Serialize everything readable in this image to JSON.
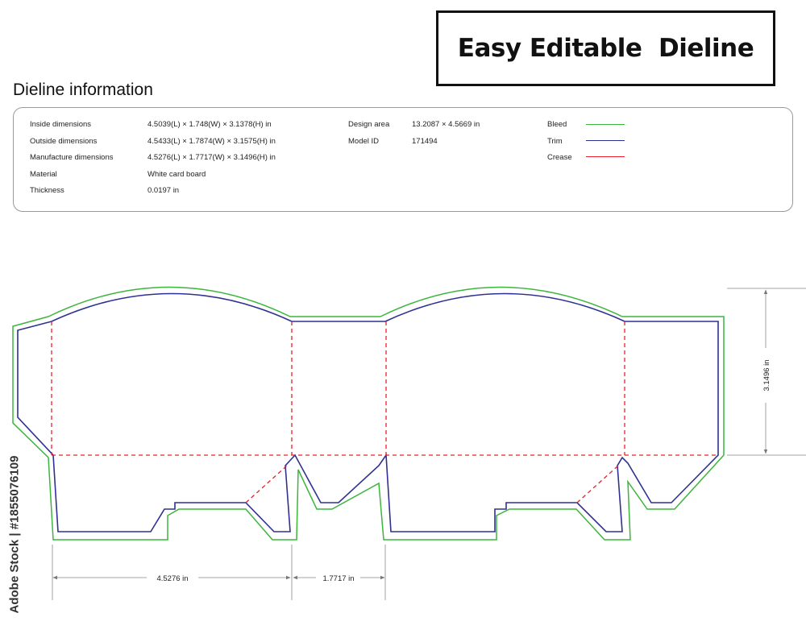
{
  "title": "Easy Editable  Dieline",
  "section_heading": "Dieline information",
  "specs": {
    "inside_label": "Inside dimensions",
    "inside_value": "4.5039(L) × 1.748(W) × 3.1378(H) in",
    "outside_label": "Outside dimensions",
    "outside_value": "4.5433(L) × 1.7874(W) × 3.1575(H) in",
    "manufacture_label": "Manufacture dimensions",
    "manufacture_value": "4.5276(L) × 1.7717(W) × 3.1496(H) in",
    "material_label": "Material",
    "material_value": "White card board",
    "thickness_label": "Thickness",
    "thickness_value": "0.0197 in",
    "design_area_label": "Design area",
    "design_area_value": "13.2087 × 4.5669 in",
    "model_id_label": "Model ID",
    "model_id_value": "171494"
  },
  "legend": {
    "bleed_label": "Bleed",
    "trim_label": "Trim",
    "crease_label": "Crease",
    "bleed_color": "#3cb53c",
    "trim_color": "#2e3192",
    "crease_color": "#e8202a"
  },
  "dimensions": {
    "length_label": "4.5276 in",
    "width_label": "1.7717 in",
    "height_label": "3.1496 in"
  },
  "watermark": {
    "stock_id": "Adobe Stock | #1855076109"
  }
}
